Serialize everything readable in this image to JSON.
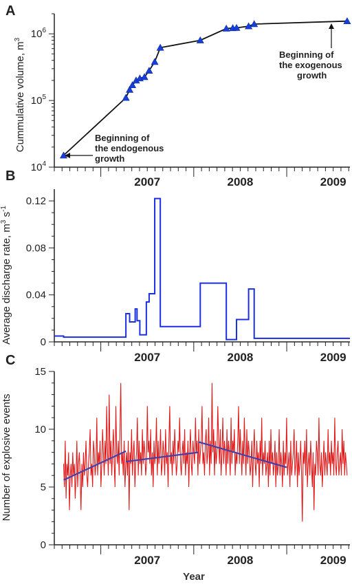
{
  "chart_data": [
    {
      "panel": "A",
      "type": "line",
      "ylabel_main": "Cummulative volume, m",
      "ylabel_sup": "3",
      "yscale": "log",
      "ylim": [
        10000,
        2000000
      ],
      "yticks": [
        {
          "value": 10000,
          "base": "10",
          "exp": "4"
        },
        {
          "value": 100000,
          "base": "10",
          "exp": "5"
        },
        {
          "value": 1000000,
          "base": "10",
          "exp": "6"
        }
      ],
      "xlim": [
        2006.5,
        2009.68
      ],
      "year_labels": [
        {
          "x": 2007.0,
          "label": "2007"
        },
        {
          "x": 2008.0,
          "label": "2008"
        },
        {
          "x": 2009.0,
          "label": "2009"
        }
      ],
      "series": [
        {
          "color": "#1a3fd8",
          "x": [
            2006.6,
            2007.27,
            2007.31,
            2007.34,
            2007.38,
            2007.42,
            2007.47,
            2007.52,
            2007.58,
            2007.64,
            2008.07,
            2008.35,
            2008.42,
            2008.46,
            2008.59,
            2008.65,
            2009.65
          ],
          "y": [
            15000,
            110000,
            145000,
            170000,
            200000,
            215000,
            225000,
            280000,
            380000,
            620000,
            800000,
            1200000,
            1220000,
            1230000,
            1300000,
            1400000,
            1550000
          ]
        }
      ],
      "annotations": [
        {
          "lines": [
            "Beginning of",
            "the endogenous",
            "growth"
          ]
        },
        {
          "lines": [
            "Beginning of",
            "the exogenous",
            "growth"
          ]
        }
      ]
    },
    {
      "panel": "B",
      "type": "line",
      "ylabel_main": "Average discharge rate, m",
      "ylabel_sup1": "3",
      "ylabel_mid": " s",
      "ylabel_sup2": "-1",
      "ylim": [
        0,
        0.13
      ],
      "yticks": [
        "0",
        "0.04",
        "0.08",
        "0.12"
      ],
      "ytick_values": [
        0,
        0.04,
        0.08,
        0.12
      ],
      "xlim": [
        2006.5,
        2009.68
      ],
      "year_labels": [
        {
          "x": 2007.0,
          "label": "2007"
        },
        {
          "x": 2008.0,
          "label": "2008"
        },
        {
          "x": 2009.0,
          "label": "2009"
        }
      ],
      "series": [
        {
          "color": "#1a2fe0",
          "step": true,
          "x": [
            2006.5,
            2006.6,
            2007.27,
            2007.31,
            2007.37,
            2007.39,
            2007.42,
            2007.49,
            2007.52,
            2007.58,
            2007.64,
            2008.07,
            2008.35,
            2008.46,
            2008.59,
            2008.65,
            2009.68
          ],
          "y": [
            0.005,
            0.004,
            0.024,
            0.017,
            0.028,
            0.018,
            0.006,
            0.034,
            0.041,
            0.122,
            0.013,
            0.05,
            0.002,
            0.019,
            0.045,
            0.003,
            0.003
          ]
        }
      ]
    },
    {
      "panel": "C",
      "type": "line",
      "ylabel": "Number of explosive events",
      "xlabel": "Year",
      "ylim": [
        0,
        15
      ],
      "yticks": [
        "0",
        "5",
        "10",
        "15"
      ],
      "ytick_values": [
        0,
        5,
        10,
        15
      ],
      "xlim": [
        2006.5,
        2009.68
      ],
      "year_labels": [
        {
          "x": 2007.0,
          "label": "2007"
        },
        {
          "x": 2008.0,
          "label": "2008"
        },
        {
          "x": 2009.0,
          "label": "2009"
        }
      ],
      "series": [
        {
          "color": "#e01818",
          "x_start": 2006.6,
          "x_end": 2009.65,
          "y": [
            7,
            5,
            9,
            4,
            7,
            6,
            8,
            3,
            6,
            7,
            5,
            8,
            6,
            7,
            4,
            6,
            9,
            5,
            7,
            8,
            6,
            3,
            7,
            5,
            8,
            6,
            7,
            9,
            6,
            5,
            7,
            8,
            10,
            6,
            7,
            5,
            9,
            8,
            6,
            7,
            11,
            6,
            8,
            7,
            9,
            5,
            7,
            10,
            8,
            6,
            9,
            7,
            12,
            8,
            6,
            13,
            7,
            9,
            6,
            8,
            10,
            7,
            5,
            12,
            8,
            7,
            9,
            6,
            10,
            14,
            7,
            8,
            6,
            9,
            5,
            7,
            8,
            6,
            9,
            3,
            8,
            7,
            10,
            6,
            8,
            9,
            5,
            7,
            8,
            11,
            6,
            9,
            7,
            8,
            6,
            10,
            7,
            9,
            8,
            6,
            7,
            12,
            8,
            9,
            7,
            10,
            6,
            8,
            5,
            9,
            7,
            8,
            11,
            6,
            9,
            7,
            8,
            10,
            6,
            7,
            9,
            8,
            6,
            10,
            7,
            8,
            5,
            9,
            12,
            7,
            8,
            6,
            9,
            7,
            10,
            8,
            6,
            7,
            9,
            8,
            11,
            7,
            6,
            8,
            9,
            7,
            10,
            6,
            8,
            7,
            9,
            5,
            8,
            10,
            7,
            6,
            9,
            8,
            7,
            11,
            8,
            9,
            6,
            10,
            7,
            8,
            9,
            12,
            7,
            8,
            6,
            9,
            10,
            7,
            8,
            11,
            6,
            9,
            7,
            14,
            8,
            10,
            6,
            9,
            7,
            8,
            12,
            9,
            7,
            10,
            6,
            8,
            11,
            7,
            9,
            8,
            6,
            10,
            7,
            9,
            8,
            6,
            11,
            7,
            9,
            8,
            10,
            6,
            8,
            7,
            9,
            12,
            7,
            10,
            8,
            6,
            9,
            7,
            11,
            8,
            6,
            10,
            7,
            9,
            8,
            6,
            7,
            9,
            5,
            8,
            10,
            7,
            6,
            9,
            7,
            8,
            5,
            9,
            7,
            11,
            6,
            8,
            7,
            9,
            6,
            7,
            8,
            5,
            9,
            6,
            10,
            7,
            8,
            6,
            7,
            9,
            5,
            8,
            6,
            7,
            10,
            6,
            8,
            7,
            5,
            9,
            6,
            8,
            7,
            11,
            6,
            7,
            8,
            5,
            9,
            6,
            7,
            8,
            10,
            6,
            7,
            9,
            5,
            8,
            6,
            7,
            9,
            6,
            2,
            8,
            7,
            9,
            6,
            10,
            5,
            7,
            8,
            6,
            9,
            7,
            5,
            8,
            3,
            7,
            6,
            9,
            8,
            6,
            11,
            7,
            6,
            8,
            5,
            7,
            9,
            6,
            8,
            7,
            6,
            10,
            7,
            8,
            6,
            9,
            7,
            8,
            6,
            11,
            7,
            6,
            8,
            9,
            6,
            7,
            8,
            6,
            10,
            7,
            9,
            6,
            8,
            7,
            6
          ]
        }
      ],
      "trend_color": "#4040a8",
      "trends": [
        {
          "x": [
            2006.6,
            2007.27
          ],
          "y": [
            5.6,
            8.1
          ]
        },
        {
          "x": [
            2007.27,
            2008.05
          ],
          "y": [
            7.2,
            8.0
          ]
        },
        {
          "x": [
            2008.05,
            2009.0
          ],
          "y": [
            8.9,
            6.7
          ]
        }
      ]
    }
  ]
}
